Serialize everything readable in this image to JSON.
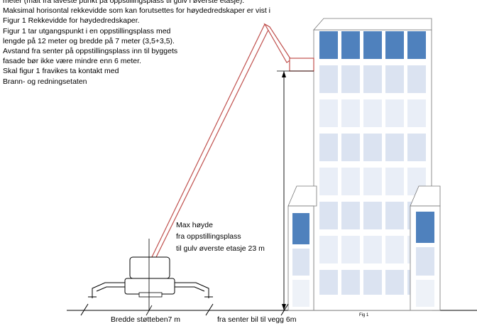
{
  "description": {
    "lines": [
      "meter (målt fra laveste punkt på oppstillingsplass til gulv i øverste etasje).",
      "Maksimal horisontal rekkevidde  som kan forutsettes for høydedredskaper  er vist i",
      "Figur 1 Rekkevidde  for høydedredskaper.",
      "Figur  1 tar utgangspunkt i en oppstillingsplass med",
      "lengde  på 12 meter  og bredde  på 7 meter  (3,5+3,5).",
      "Avstand fra senter på oppstillingsplass inn til byggets",
      "fasade bør ikke være mindre enn 6 meter.",
      "Skal figur 1 fravikes ta kontakt med",
      "Brann- og redningsetaten"
    ]
  },
  "annotations": {
    "max_height_line1": "Max høyde",
    "max_height_line2": "fra oppstillingsplass",
    "max_height_line3": "til gulv øverste etasje  23 m",
    "support_width": "Bredde støtteben7  m",
    "center_to_wall": "fra senter  bil til vegg 6m",
    "figure_label": "Fig 1"
  },
  "colors": {
    "boom_red": "#c0504d",
    "window_blue": "#4f81bd",
    "window_light": "#dbe3f1",
    "building_fill": "#ffffff",
    "ink": "#000000"
  }
}
